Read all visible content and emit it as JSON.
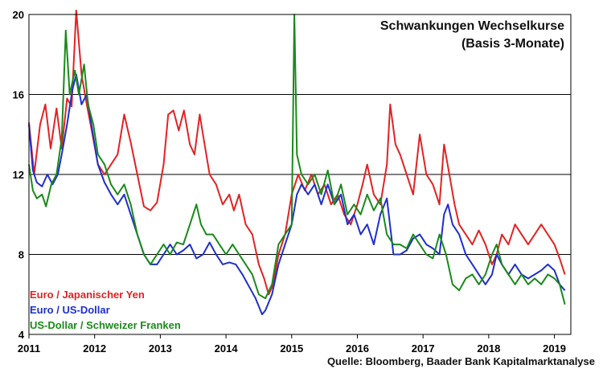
{
  "chart_data": {
    "type": "line",
    "title": "Schwankungen Wechselkurse",
    "subtitle": "(Basis 3-Monate)",
    "xlabel": "",
    "ylabel": "",
    "xlim": [
      2011,
      2019.25
    ],
    "ylim": [
      4,
      20
    ],
    "y_ticks": [
      4,
      8,
      12,
      16,
      20
    ],
    "x_ticks": [
      2011,
      2012,
      2013,
      2014,
      2015,
      2016,
      2017,
      2018,
      2019
    ],
    "x_tick_labels": [
      "2011",
      "2012",
      "2013",
      "2014",
      "2015",
      "2016",
      "2017",
      "2018",
      "2019"
    ],
    "grid": "horizontal",
    "legend_position": "bottom-left",
    "source": "Quelle: Bloomberg, Baader Bank Kapitalmarktanalyse",
    "series": [
      {
        "name": "Euro / Japanischer Yen",
        "color": "#e32222",
        "points": [
          [
            2011.0,
            14.6
          ],
          [
            2011.08,
            12.0
          ],
          [
            2011.17,
            14.5
          ],
          [
            2011.25,
            15.5
          ],
          [
            2011.33,
            13.3
          ],
          [
            2011.42,
            15.3
          ],
          [
            2011.5,
            13.3
          ],
          [
            2011.58,
            15.8
          ],
          [
            2011.65,
            15.4
          ],
          [
            2011.72,
            20.2
          ],
          [
            2011.8,
            17.0
          ],
          [
            2011.88,
            15.5
          ],
          [
            2011.95,
            14.3
          ],
          [
            2012.05,
            12.5
          ],
          [
            2012.15,
            12.0
          ],
          [
            2012.25,
            12.5
          ],
          [
            2012.35,
            13.0
          ],
          [
            2012.45,
            15.0
          ],
          [
            2012.55,
            13.6
          ],
          [
            2012.65,
            12.0
          ],
          [
            2012.75,
            10.4
          ],
          [
            2012.85,
            10.2
          ],
          [
            2012.95,
            10.6
          ],
          [
            2013.05,
            12.5
          ],
          [
            2013.12,
            15.0
          ],
          [
            2013.2,
            15.2
          ],
          [
            2013.28,
            14.2
          ],
          [
            2013.36,
            15.2
          ],
          [
            2013.45,
            13.5
          ],
          [
            2013.52,
            13.0
          ],
          [
            2013.6,
            15.0
          ],
          [
            2013.68,
            13.4
          ],
          [
            2013.75,
            12.0
          ],
          [
            2013.85,
            11.5
          ],
          [
            2013.95,
            10.5
          ],
          [
            2014.05,
            11.0
          ],
          [
            2014.12,
            10.2
          ],
          [
            2014.2,
            11.0
          ],
          [
            2014.3,
            9.5
          ],
          [
            2014.4,
            9.0
          ],
          [
            2014.5,
            7.5
          ],
          [
            2014.58,
            6.8
          ],
          [
            2014.65,
            6.0
          ],
          [
            2014.72,
            6.5
          ],
          [
            2014.8,
            8.0
          ],
          [
            2014.9,
            9.0
          ],
          [
            2015.0,
            11.0
          ],
          [
            2015.1,
            12.0
          ],
          [
            2015.2,
            11.2
          ],
          [
            2015.3,
            12.0
          ],
          [
            2015.4,
            11.0
          ],
          [
            2015.5,
            11.5
          ],
          [
            2015.6,
            10.5
          ],
          [
            2015.7,
            11.0
          ],
          [
            2015.8,
            10.0
          ],
          [
            2015.9,
            9.5
          ],
          [
            2016.0,
            10.5
          ],
          [
            2016.08,
            11.5
          ],
          [
            2016.15,
            12.5
          ],
          [
            2016.25,
            11.0
          ],
          [
            2016.35,
            10.5
          ],
          [
            2016.45,
            12.5
          ],
          [
            2016.5,
            15.5
          ],
          [
            2016.58,
            13.5
          ],
          [
            2016.65,
            13.0
          ],
          [
            2016.75,
            12.0
          ],
          [
            2016.85,
            11.0
          ],
          [
            2016.95,
            14.0
          ],
          [
            2017.05,
            12.0
          ],
          [
            2017.15,
            11.5
          ],
          [
            2017.25,
            10.5
          ],
          [
            2017.32,
            13.5
          ],
          [
            2017.4,
            12.0
          ],
          [
            2017.48,
            10.5
          ],
          [
            2017.55,
            9.5
          ],
          [
            2017.65,
            9.0
          ],
          [
            2017.75,
            8.5
          ],
          [
            2017.85,
            9.2
          ],
          [
            2017.95,
            8.5
          ],
          [
            2018.05,
            7.5
          ],
          [
            2018.12,
            8.0
          ],
          [
            2018.2,
            9.0
          ],
          [
            2018.3,
            8.5
          ],
          [
            2018.4,
            9.5
          ],
          [
            2018.5,
            9.0
          ],
          [
            2018.6,
            8.5
          ],
          [
            2018.7,
            9.0
          ],
          [
            2018.8,
            9.5
          ],
          [
            2018.9,
            9.0
          ],
          [
            2019.0,
            8.5
          ],
          [
            2019.08,
            7.8
          ],
          [
            2019.16,
            7.0
          ]
        ]
      },
      {
        "name": "Euro / US-Dollar",
        "color": "#1f2fcc",
        "points": [
          [
            2011.0,
            14.5
          ],
          [
            2011.06,
            12.2
          ],
          [
            2011.12,
            11.6
          ],
          [
            2011.2,
            11.4
          ],
          [
            2011.28,
            12.0
          ],
          [
            2011.36,
            11.5
          ],
          [
            2011.44,
            12.0
          ],
          [
            2011.5,
            13.0
          ],
          [
            2011.58,
            14.5
          ],
          [
            2011.66,
            16.2
          ],
          [
            2011.72,
            17.0
          ],
          [
            2011.8,
            15.5
          ],
          [
            2011.88,
            16.0
          ],
          [
            2011.95,
            14.5
          ],
          [
            2012.05,
            12.5
          ],
          [
            2012.15,
            11.6
          ],
          [
            2012.25,
            11.0
          ],
          [
            2012.35,
            10.5
          ],
          [
            2012.45,
            11.0
          ],
          [
            2012.55,
            10.0
          ],
          [
            2012.65,
            9.0
          ],
          [
            2012.75,
            8.0
          ],
          [
            2012.85,
            7.5
          ],
          [
            2012.95,
            7.5
          ],
          [
            2013.05,
            8.0
          ],
          [
            2013.15,
            8.5
          ],
          [
            2013.25,
            8.0
          ],
          [
            2013.35,
            8.2
          ],
          [
            2013.45,
            8.5
          ],
          [
            2013.55,
            7.8
          ],
          [
            2013.65,
            8.0
          ],
          [
            2013.75,
            8.6
          ],
          [
            2013.85,
            8.0
          ],
          [
            2013.95,
            7.5
          ],
          [
            2014.05,
            7.6
          ],
          [
            2014.15,
            7.5
          ],
          [
            2014.25,
            7.0
          ],
          [
            2014.35,
            6.4
          ],
          [
            2014.45,
            5.8
          ],
          [
            2014.55,
            5.0
          ],
          [
            2014.6,
            5.2
          ],
          [
            2014.7,
            6.0
          ],
          [
            2014.8,
            7.5
          ],
          [
            2014.9,
            8.5
          ],
          [
            2015.0,
            9.5
          ],
          [
            2015.08,
            11.0
          ],
          [
            2015.15,
            11.5
          ],
          [
            2015.25,
            11.0
          ],
          [
            2015.35,
            11.5
          ],
          [
            2015.45,
            10.5
          ],
          [
            2015.55,
            11.5
          ],
          [
            2015.65,
            10.5
          ],
          [
            2015.75,
            11.0
          ],
          [
            2015.85,
            9.5
          ],
          [
            2015.95,
            10.0
          ],
          [
            2016.05,
            9.0
          ],
          [
            2016.15,
            9.5
          ],
          [
            2016.25,
            8.5
          ],
          [
            2016.35,
            10.0
          ],
          [
            2016.45,
            10.8
          ],
          [
            2016.55,
            8.0
          ],
          [
            2016.65,
            8.0
          ],
          [
            2016.75,
            8.2
          ],
          [
            2016.85,
            8.8
          ],
          [
            2016.95,
            9.0
          ],
          [
            2017.05,
            8.5
          ],
          [
            2017.15,
            8.3
          ],
          [
            2017.25,
            8.0
          ],
          [
            2017.32,
            10.0
          ],
          [
            2017.38,
            10.5
          ],
          [
            2017.45,
            9.5
          ],
          [
            2017.55,
            9.0
          ],
          [
            2017.65,
            8.0
          ],
          [
            2017.75,
            7.5
          ],
          [
            2017.85,
            7.0
          ],
          [
            2017.95,
            6.5
          ],
          [
            2018.05,
            7.0
          ],
          [
            2018.12,
            8.0
          ],
          [
            2018.2,
            7.5
          ],
          [
            2018.3,
            7.0
          ],
          [
            2018.4,
            7.5
          ],
          [
            2018.5,
            7.0
          ],
          [
            2018.6,
            6.8
          ],
          [
            2018.7,
            7.0
          ],
          [
            2018.8,
            7.2
          ],
          [
            2018.9,
            7.5
          ],
          [
            2019.0,
            7.2
          ],
          [
            2019.08,
            6.5
          ],
          [
            2019.16,
            6.2
          ]
        ]
      },
      {
        "name": "US-Dollar / Schweizer Franken",
        "color": "#1a8a1a",
        "points": [
          [
            2011.0,
            12.5
          ],
          [
            2011.06,
            11.2
          ],
          [
            2011.12,
            10.8
          ],
          [
            2011.2,
            11.0
          ],
          [
            2011.26,
            10.4
          ],
          [
            2011.34,
            11.5
          ],
          [
            2011.42,
            12.0
          ],
          [
            2011.5,
            13.8
          ],
          [
            2011.56,
            19.2
          ],
          [
            2011.62,
            16.0
          ],
          [
            2011.7,
            17.2
          ],
          [
            2011.76,
            16.0
          ],
          [
            2011.84,
            17.5
          ],
          [
            2011.9,
            15.5
          ],
          [
            2011.98,
            14.5
          ],
          [
            2012.05,
            13.0
          ],
          [
            2012.15,
            12.5
          ],
          [
            2012.25,
            11.5
          ],
          [
            2012.35,
            11.0
          ],
          [
            2012.45,
            11.5
          ],
          [
            2012.55,
            10.5
          ],
          [
            2012.65,
            9.0
          ],
          [
            2012.75,
            8.0
          ],
          [
            2012.85,
            7.5
          ],
          [
            2012.95,
            8.0
          ],
          [
            2013.05,
            8.5
          ],
          [
            2013.15,
            8.0
          ],
          [
            2013.25,
            8.6
          ],
          [
            2013.35,
            8.5
          ],
          [
            2013.45,
            9.5
          ],
          [
            2013.55,
            10.5
          ],
          [
            2013.62,
            9.5
          ],
          [
            2013.7,
            9.0
          ],
          [
            2013.8,
            9.0
          ],
          [
            2013.9,
            8.5
          ],
          [
            2014.0,
            8.0
          ],
          [
            2014.1,
            8.5
          ],
          [
            2014.2,
            8.0
          ],
          [
            2014.3,
            7.5
          ],
          [
            2014.4,
            7.0
          ],
          [
            2014.5,
            6.0
          ],
          [
            2014.6,
            5.8
          ],
          [
            2014.7,
            6.5
          ],
          [
            2014.8,
            8.5
          ],
          [
            2014.9,
            9.0
          ],
          [
            2015.0,
            9.5
          ],
          [
            2015.04,
            20.0
          ],
          [
            2015.08,
            13.0
          ],
          [
            2015.15,
            12.0
          ],
          [
            2015.25,
            11.5
          ],
          [
            2015.35,
            12.0
          ],
          [
            2015.45,
            11.0
          ],
          [
            2015.55,
            12.2
          ],
          [
            2015.65,
            10.5
          ],
          [
            2015.75,
            11.5
          ],
          [
            2015.85,
            10.0
          ],
          [
            2015.95,
            10.5
          ],
          [
            2016.05,
            10.0
          ],
          [
            2016.15,
            11.0
          ],
          [
            2016.25,
            10.2
          ],
          [
            2016.35,
            10.8
          ],
          [
            2016.45,
            9.0
          ],
          [
            2016.55,
            8.5
          ],
          [
            2016.65,
            8.5
          ],
          [
            2016.75,
            8.3
          ],
          [
            2016.85,
            9.0
          ],
          [
            2016.95,
            8.5
          ],
          [
            2017.05,
            8.0
          ],
          [
            2017.15,
            7.8
          ],
          [
            2017.25,
            9.0
          ],
          [
            2017.35,
            8.0
          ],
          [
            2017.45,
            6.5
          ],
          [
            2017.55,
            6.2
          ],
          [
            2017.65,
            6.8
          ],
          [
            2017.75,
            7.0
          ],
          [
            2017.85,
            6.5
          ],
          [
            2017.95,
            7.0
          ],
          [
            2018.05,
            8.0
          ],
          [
            2018.12,
            8.5
          ],
          [
            2018.2,
            7.5
          ],
          [
            2018.3,
            7.0
          ],
          [
            2018.4,
            6.5
          ],
          [
            2018.5,
            7.0
          ],
          [
            2018.6,
            6.5
          ],
          [
            2018.7,
            6.8
          ],
          [
            2018.8,
            6.5
          ],
          [
            2018.9,
            7.0
          ],
          [
            2019.0,
            6.8
          ],
          [
            2019.08,
            6.5
          ],
          [
            2019.16,
            5.5
          ]
        ]
      }
    ]
  }
}
